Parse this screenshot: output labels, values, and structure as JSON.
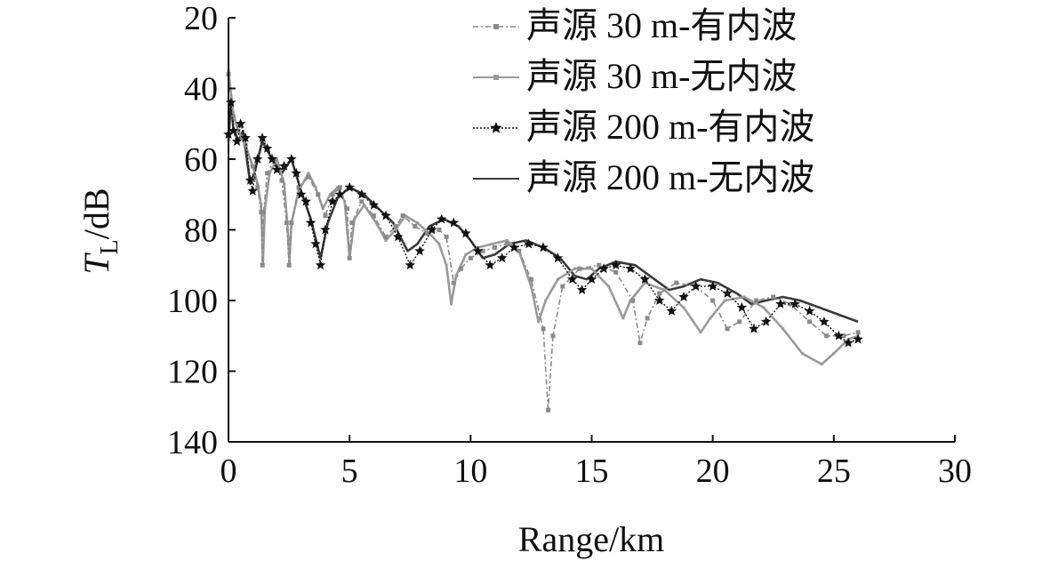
{
  "colors": {
    "s30_with": "#8a8a8a",
    "s30_without": "#9a9a9a",
    "s200_with": "#111111",
    "s200_without": "#3a3a3a",
    "axis": "#111111"
  },
  "chart_data": {
    "type": "line",
    "xlabel": "Range/km",
    "ylabel_main": "T",
    "ylabel_sub": "L",
    "ylabel_rest": "/dB",
    "xlim": [
      0,
      30
    ],
    "ylim": [
      20,
      140
    ],
    "y_inverted": true,
    "xticks": [
      0,
      5,
      10,
      15,
      20,
      25,
      30
    ],
    "yticks": [
      20,
      40,
      60,
      80,
      100,
      120,
      140
    ],
    "grid": false,
    "legend_position": "top-right",
    "series": [
      {
        "name": "声源 30 m-有内波",
        "style": "dashdot-square",
        "points": [
          [
            0.0,
            36
          ],
          [
            0.2,
            48
          ],
          [
            0.4,
            52
          ],
          [
            0.7,
            56
          ],
          [
            1.0,
            62
          ],
          [
            1.2,
            68
          ],
          [
            1.35,
            75
          ],
          [
            1.4,
            90
          ],
          [
            1.45,
            75
          ],
          [
            1.6,
            64
          ],
          [
            1.9,
            60
          ],
          [
            2.2,
            66
          ],
          [
            2.4,
            78
          ],
          [
            2.5,
            90
          ],
          [
            2.6,
            78
          ],
          [
            2.9,
            68
          ],
          [
            3.3,
            65
          ],
          [
            3.7,
            70
          ],
          [
            4.0,
            76
          ],
          [
            4.3,
            70
          ],
          [
            4.6,
            68
          ],
          [
            4.9,
            74
          ],
          [
            5.0,
            88
          ],
          [
            5.1,
            78
          ],
          [
            5.5,
            72
          ],
          [
            6.0,
            76
          ],
          [
            6.5,
            82
          ],
          [
            6.9,
            79
          ],
          [
            7.2,
            76
          ],
          [
            7.7,
            79
          ],
          [
            8.2,
            81
          ],
          [
            8.7,
            80
          ],
          [
            9.0,
            82
          ],
          [
            9.3,
            95
          ],
          [
            9.6,
            91
          ],
          [
            10.0,
            88
          ],
          [
            10.5,
            86
          ],
          [
            11.0,
            85
          ],
          [
            11.5,
            84
          ],
          [
            12.0,
            86
          ],
          [
            12.5,
            94
          ],
          [
            13.0,
            108
          ],
          [
            13.2,
            131
          ],
          [
            13.4,
            110
          ],
          [
            13.8,
            96
          ],
          [
            14.5,
            91
          ],
          [
            15.3,
            90
          ],
          [
            16.0,
            92
          ],
          [
            16.7,
            100
          ],
          [
            17.0,
            112
          ],
          [
            17.3,
            105
          ],
          [
            17.8,
            98
          ],
          [
            18.5,
            95
          ],
          [
            19.3,
            96
          ],
          [
            20.0,
            100
          ],
          [
            20.6,
            108
          ],
          [
            21.1,
            106
          ],
          [
            21.8,
            100
          ],
          [
            22.5,
            99
          ],
          [
            23.2,
            101
          ],
          [
            24.0,
            106
          ],
          [
            24.7,
            110
          ],
          [
            25.4,
            110
          ],
          [
            26.0,
            109
          ]
        ]
      },
      {
        "name": "声源 30 m-无内波",
        "style": "solid-small-square",
        "points": [
          [
            0.0,
            35
          ],
          [
            0.2,
            47
          ],
          [
            0.4,
            52
          ],
          [
            0.7,
            56
          ],
          [
            1.0,
            62
          ],
          [
            1.2,
            67
          ],
          [
            1.35,
            73
          ],
          [
            1.42,
            90
          ],
          [
            1.5,
            74
          ],
          [
            1.7,
            64
          ],
          [
            2.0,
            60
          ],
          [
            2.3,
            67
          ],
          [
            2.45,
            80
          ],
          [
            2.52,
            89
          ],
          [
            2.6,
            78
          ],
          [
            2.9,
            69
          ],
          [
            3.3,
            64
          ],
          [
            3.6,
            68
          ],
          [
            3.9,
            74
          ],
          [
            4.2,
            70
          ],
          [
            4.5,
            68
          ],
          [
            4.8,
            72
          ],
          [
            5.0,
            88
          ],
          [
            5.2,
            77
          ],
          [
            5.6,
            73
          ],
          [
            6.1,
            78
          ],
          [
            6.5,
            83
          ],
          [
            6.9,
            80
          ],
          [
            7.3,
            76
          ],
          [
            7.8,
            78
          ],
          [
            8.3,
            81
          ],
          [
            8.7,
            84
          ],
          [
            9.0,
            90
          ],
          [
            9.2,
            101
          ],
          [
            9.4,
            93
          ],
          [
            9.8,
            87
          ],
          [
            10.3,
            85
          ],
          [
            10.9,
            84
          ],
          [
            11.5,
            83
          ],
          [
            12.0,
            86
          ],
          [
            12.5,
            96
          ],
          [
            12.8,
            106
          ],
          [
            13.1,
            100
          ],
          [
            13.6,
            94
          ],
          [
            14.3,
            91
          ],
          [
            15.0,
            91
          ],
          [
            15.7,
            96
          ],
          [
            16.3,
            105
          ],
          [
            16.6,
            100
          ],
          [
            17.2,
            95
          ],
          [
            18.0,
            97
          ],
          [
            18.8,
            102
          ],
          [
            19.5,
            109
          ],
          [
            19.9,
            105
          ],
          [
            20.5,
            100
          ],
          [
            21.3,
            99
          ],
          [
            22.1,
            102
          ],
          [
            22.9,
            108
          ],
          [
            23.7,
            115
          ],
          [
            24.5,
            118
          ],
          [
            25.0,
            115
          ],
          [
            25.6,
            111
          ],
          [
            26.0,
            110
          ]
        ]
      },
      {
        "name": "声源 200 m-有内波",
        "style": "dotted-star",
        "points": [
          [
            0.0,
            53
          ],
          [
            0.1,
            44
          ],
          [
            0.2,
            52
          ],
          [
            0.35,
            55
          ],
          [
            0.5,
            50
          ],
          [
            0.7,
            54
          ],
          [
            0.9,
            66
          ],
          [
            1.0,
            69
          ],
          [
            1.2,
            60
          ],
          [
            1.4,
            54
          ],
          [
            1.6,
            57
          ],
          [
            1.8,
            60
          ],
          [
            2.0,
            63
          ],
          [
            2.3,
            62
          ],
          [
            2.6,
            60
          ],
          [
            2.8,
            64
          ],
          [
            3.0,
            70
          ],
          [
            3.2,
            72
          ],
          [
            3.4,
            78
          ],
          [
            3.6,
            84
          ],
          [
            3.8,
            90
          ],
          [
            4.0,
            80
          ],
          [
            4.3,
            72
          ],
          [
            4.6,
            70
          ],
          [
            5.0,
            68
          ],
          [
            5.5,
            70
          ],
          [
            6.0,
            73
          ],
          [
            6.5,
            76
          ],
          [
            7.0,
            82
          ],
          [
            7.5,
            90
          ],
          [
            7.9,
            86
          ],
          [
            8.4,
            80
          ],
          [
            8.8,
            77
          ],
          [
            9.3,
            78
          ],
          [
            9.8,
            81
          ],
          [
            10.3,
            86
          ],
          [
            10.8,
            90
          ],
          [
            11.3,
            88
          ],
          [
            11.8,
            85
          ],
          [
            12.4,
            84
          ],
          [
            13.0,
            85
          ],
          [
            13.6,
            88
          ],
          [
            14.2,
            94
          ],
          [
            14.6,
            97
          ],
          [
            15.0,
            94
          ],
          [
            15.5,
            91
          ],
          [
            16.0,
            90
          ],
          [
            16.6,
            91
          ],
          [
            17.2,
            94
          ],
          [
            17.8,
            100
          ],
          [
            18.3,
            103
          ],
          [
            18.8,
            99
          ],
          [
            19.3,
            96
          ],
          [
            20.0,
            96
          ],
          [
            20.6,
            98
          ],
          [
            21.2,
            102
          ],
          [
            21.7,
            108
          ],
          [
            22.2,
            106
          ],
          [
            22.8,
            101
          ],
          [
            23.4,
            101
          ],
          [
            24.0,
            103
          ],
          [
            24.6,
            106
          ],
          [
            25.2,
            110
          ],
          [
            25.6,
            112
          ],
          [
            26.0,
            111
          ]
        ]
      },
      {
        "name": "声源 200 m-无内波",
        "style": "solid-dark",
        "points": [
          [
            0.0,
            55
          ],
          [
            0.1,
            44
          ],
          [
            0.2,
            51
          ],
          [
            0.4,
            55
          ],
          [
            0.6,
            52
          ],
          [
            0.9,
            67
          ],
          [
            1.1,
            63
          ],
          [
            1.4,
            55
          ],
          [
            1.8,
            60
          ],
          [
            2.2,
            64
          ],
          [
            2.6,
            60
          ],
          [
            3.0,
            69
          ],
          [
            3.4,
            77
          ],
          [
            3.8,
            88
          ],
          [
            4.1,
            78
          ],
          [
            4.5,
            71
          ],
          [
            5.0,
            68
          ],
          [
            5.6,
            70
          ],
          [
            6.2,
            74
          ],
          [
            6.8,
            78
          ],
          [
            7.4,
            86
          ],
          [
            7.8,
            84
          ],
          [
            8.3,
            79
          ],
          [
            8.9,
            77
          ],
          [
            9.5,
            79
          ],
          [
            10.0,
            83
          ],
          [
            10.5,
            88
          ],
          [
            11.0,
            87
          ],
          [
            11.6,
            84
          ],
          [
            12.3,
            83
          ],
          [
            13.0,
            85
          ],
          [
            13.7,
            88
          ],
          [
            14.3,
            93
          ],
          [
            14.8,
            94
          ],
          [
            15.3,
            91
          ],
          [
            16.0,
            89
          ],
          [
            16.8,
            90
          ],
          [
            17.6,
            94
          ],
          [
            18.2,
            97
          ],
          [
            18.8,
            96
          ],
          [
            19.5,
            94
          ],
          [
            20.2,
            95
          ],
          [
            21.0,
            98
          ],
          [
            21.6,
            101
          ],
          [
            22.2,
            100
          ],
          [
            22.9,
            99
          ],
          [
            23.6,
            100
          ],
          [
            24.4,
            102
          ],
          [
            25.2,
            104
          ],
          [
            26.0,
            106
          ]
        ]
      }
    ]
  }
}
